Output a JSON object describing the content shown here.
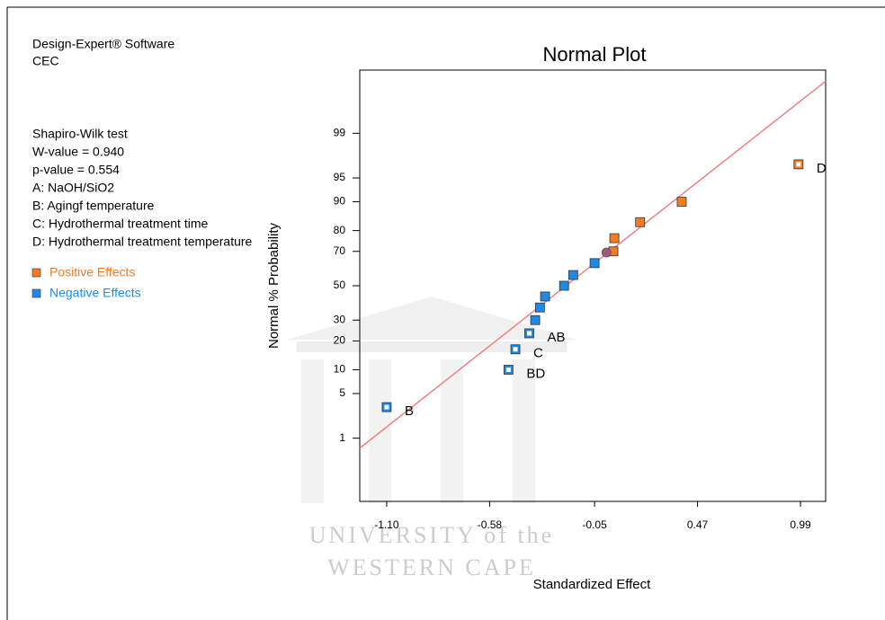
{
  "header": {
    "software": "Design-Expert® Software",
    "response": "CEC"
  },
  "notes": [
    "Shapiro-Wilk test",
    "W-value = 0.940",
    "p-value = 0.554",
    "A: NaOH/SiO2",
    "B: Agingf temperature",
    "C: Hydrothermal treatment time",
    "D: Hydrothermal treatment temperature"
  ],
  "watermark": [
    "UNIVERSITY of the",
    "WESTERN CAPE"
  ],
  "chart_data": {
    "type": "scatter",
    "title": "Normal Plot",
    "x_label": "Standardized Effect",
    "y_label": "Normal % Probability",
    "y_scale": "probit",
    "xlim": [
      -1.236,
      1.117
    ],
    "xticks": [
      {
        "value": -1.1,
        "label": "-1.10"
      },
      -0.58,
      -0.05,
      0.47,
      0.99
    ],
    "ylim": [
      0.05,
      99.95
    ],
    "yticks": [
      1,
      5,
      10,
      20,
      30,
      50,
      70,
      80,
      90,
      95,
      99
    ],
    "series": [
      {
        "name": "Positive Effects",
        "color": "#f47b20",
        "x": [
          0.045,
          0.05,
          0.18,
          0.39,
          0.98
        ],
        "values": [
          70,
          76.6,
          83.4,
          90,
          96.8
        ],
        "point_labels": [
          null,
          null,
          null,
          null,
          "D"
        ]
      },
      {
        "name": "Negative Effects",
        "color": "#1f8ae6",
        "x": [
          -1.1,
          -0.485,
          -0.45,
          -0.38,
          -0.35,
          -0.326,
          -0.3,
          -0.204,
          -0.158,
          -0.05
        ],
        "values": [
          3.2,
          10,
          16.6,
          23.4,
          30,
          37,
          43.5,
          50,
          56.5,
          63.5
        ],
        "point_labels": [
          "B",
          "BD",
          "C",
          "AB",
          null,
          null,
          null,
          null,
          null,
          null
        ]
      },
      {
        "color": "#a05a78",
        "marker": "circle",
        "x": [
          0.01
        ],
        "values": [
          69.4
        ]
      }
    ],
    "fit_line": {
      "color": "#f08080",
      "x": [
        -1.236,
        1.117
      ],
      "values": [
        0.66,
        99.91
      ]
    }
  }
}
